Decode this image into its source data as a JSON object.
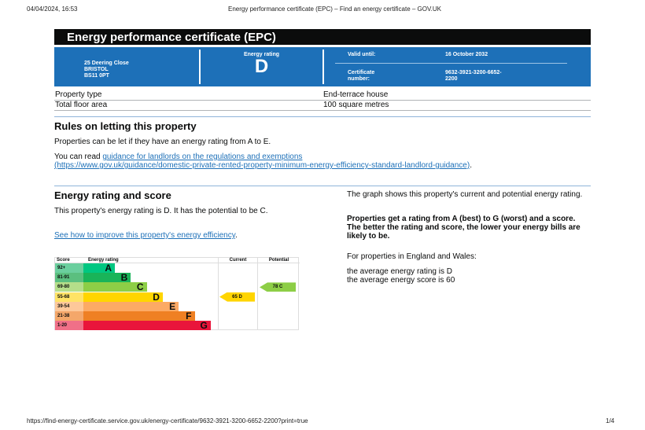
{
  "browser": {
    "datetime": "04/04/2024, 16:53",
    "page_title": "Energy performance certificate (EPC) – Find an energy certificate – GOV.UK",
    "url": "https://find-energy-certificate.service.gov.uk/energy-certificate/9632-3921-3200-6652-2200?print=true",
    "page": "1/4"
  },
  "title": "Energy performance certificate (EPC)",
  "address": {
    "line1": "25 Deering Close",
    "line2": "BRISTOL",
    "line3": "BS11 0PT"
  },
  "energy_rating": {
    "label": "Energy rating",
    "value": "D"
  },
  "valid_until": {
    "label": "Valid until:",
    "value": "16 October 2032"
  },
  "certificate": {
    "label1": "Certificate",
    "label2": "number:",
    "value1": "9632-3921-3200-6652-",
    "value2": "2200"
  },
  "details": [
    {
      "label": "Property type",
      "value": "End-terrace house"
    },
    {
      "label": "Total floor area",
      "value": "100 square metres"
    }
  ],
  "rules": {
    "heading": "Rules on letting this property",
    "p1": "Properties can be let if they have an energy rating from A to E.",
    "p2_prefix": "You can read ",
    "link": "guidance for landlords on the regulations and exemptions",
    "link_url": "(https://www.gov.uk/guidance/domestic-private-rented-property-minimum-energy-efficiency-standard-landlord-guidance)",
    "p2_suffix": "."
  },
  "score": {
    "heading": "Energy rating and score",
    "p1": "This property's energy rating is D. It has the potential to be C.",
    "link": "See how to improve this property's energy efficiency",
    "link_suffix": ".",
    "right_p1": "The graph shows this property's current and potential energy rating.",
    "right_p2": "Properties get a rating from A (best) to G (worst) and a score. The better the rating and score, the lower your energy bills are likely to be.",
    "right_p3": "For properties in England and Wales:",
    "right_p4": "the average energy rating is D",
    "right_p5": "the average energy score is 60"
  },
  "chart_data": {
    "type": "bar",
    "headers": {
      "score": "Score",
      "rating": "Energy rating",
      "current": "Current",
      "potential": "Potential"
    },
    "bands": [
      {
        "score": "92+",
        "letter": "A",
        "color": "#00c781",
        "score_color": "#6bcf9e"
      },
      {
        "score": "81-91",
        "letter": "B",
        "color": "#19b459",
        "score_color": "#5bbf7f"
      },
      {
        "score": "69-80",
        "letter": "C",
        "color": "#8dce46",
        "score_color": "#b5de8a"
      },
      {
        "score": "55-68",
        "letter": "D",
        "color": "#ffd500",
        "score_color": "#ffe366"
      },
      {
        "score": "39-54",
        "letter": "E",
        "color": "#fcaa65",
        "score_color": "#fdc89a"
      },
      {
        "score": "21-38",
        "letter": "F",
        "color": "#ef8023",
        "score_color": "#f4a76a"
      },
      {
        "score": "1-20",
        "letter": "G",
        "color": "#e9153b",
        "score_color": "#f07088"
      }
    ],
    "current": {
      "score": 65,
      "letter": "D",
      "label": "65  D",
      "color": "#ffd500"
    },
    "potential": {
      "score": 78,
      "letter": "C",
      "label": "78  C",
      "color": "#8dce46"
    }
  }
}
